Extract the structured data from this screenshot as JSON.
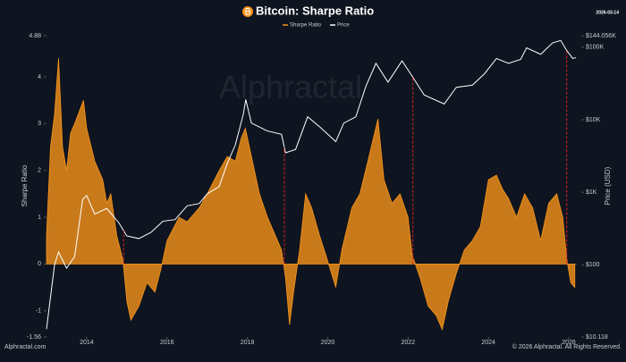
{
  "chart_data": {
    "type": "area-line",
    "title": "Bitcoin: Sharpe Ratio",
    "date": "2026-03-14",
    "y_label": "Sharpe Ratio",
    "y2_label": "Price (USD)",
    "watermark": "Alphractal",
    "footer_left": "Alphractal.com",
    "footer_right": "© 2026 Alphractal. All Rights Reserved.",
    "xlim": [
      2013,
      2026.2
    ],
    "xticks": [
      2014,
      2016,
      2018,
      2020,
      2022,
      2024,
      2026
    ],
    "ylim": [
      -1.56,
      4.88
    ],
    "yticks": [
      -1.56,
      -1,
      0,
      1,
      2,
      3,
      4,
      4.88
    ],
    "y2lim": [
      10.118,
      144056
    ],
    "y2log": true,
    "y2ticks": [
      {
        "value": 10.118,
        "label": "$10.118"
      },
      {
        "value": 100,
        "label": "$100"
      },
      {
        "value": 1000,
        "label": "$1K"
      },
      {
        "value": 10000,
        "label": "$10K"
      },
      {
        "value": 100000,
        "label": "$100K"
      },
      {
        "value": 144056,
        "label": "$144.056K"
      }
    ],
    "cycle_markers": [
      2014.92,
      2018.92,
      2022.12,
      2025.95
    ],
    "marker_color": "#e02020",
    "series": [
      {
        "name": "Sharpe Ratio",
        "color": "#f7931a",
        "kind": "area",
        "x": [
          2013.0,
          2013.1,
          2013.2,
          2013.3,
          2013.4,
          2013.5,
          2013.6,
          2013.7,
          2013.92,
          2014.0,
          2014.2,
          2014.4,
          2014.5,
          2014.6,
          2014.75,
          2014.9,
          2015.0,
          2015.1,
          2015.3,
          2015.5,
          2015.7,
          2015.85,
          2016.0,
          2016.3,
          2016.5,
          2016.8,
          2017.0,
          2017.3,
          2017.5,
          2017.7,
          2017.85,
          2017.95,
          2018.1,
          2018.3,
          2018.5,
          2018.7,
          2018.85,
          2018.95,
          2019.05,
          2019.15,
          2019.3,
          2019.45,
          2019.6,
          2019.8,
          2019.95,
          2020.2,
          2020.35,
          2020.6,
          2020.8,
          2021.0,
          2021.25,
          2021.4,
          2021.6,
          2021.8,
          2022.0,
          2022.1,
          2022.3,
          2022.5,
          2022.7,
          2022.85,
          2023.0,
          2023.2,
          2023.4,
          2023.6,
          2023.8,
          2024.0,
          2024.2,
          2024.35,
          2024.5,
          2024.7,
          2024.9,
          2025.1,
          2025.3,
          2025.5,
          2025.7,
          2025.85,
          2025.95,
          2026.05,
          2026.15
        ],
        "values": [
          0.6,
          2.5,
          3.2,
          4.4,
          2.5,
          2.0,
          2.8,
          3.0,
          3.5,
          2.9,
          2.2,
          1.8,
          1.3,
          1.5,
          0.6,
          0.1,
          -0.8,
          -1.2,
          -0.9,
          -0.4,
          -0.6,
          -0.1,
          0.5,
          1.0,
          0.9,
          1.2,
          1.5,
          2.0,
          2.3,
          2.2,
          2.7,
          2.9,
          2.3,
          1.5,
          1.0,
          0.6,
          0.3,
          -0.3,
          -1.3,
          -0.6,
          0.3,
          1.5,
          1.2,
          0.6,
          0.2,
          -0.5,
          0.3,
          1.2,
          1.5,
          2.2,
          3.1,
          1.8,
          1.3,
          1.5,
          1.0,
          0.2,
          -0.3,
          -0.9,
          -1.1,
          -1.4,
          -0.8,
          -0.2,
          0.3,
          0.5,
          0.8,
          1.8,
          1.9,
          1.6,
          1.4,
          1.0,
          1.5,
          1.2,
          0.5,
          1.3,
          1.5,
          1.0,
          0.1,
          -0.4,
          -0.5
        ]
      },
      {
        "name": "Price",
        "color": "#ffffff",
        "kind": "line",
        "axis": "y2",
        "x": [
          2013.0,
          2013.2,
          2013.3,
          2013.5,
          2013.7,
          2013.9,
          2014.0,
          2014.2,
          2014.5,
          2014.8,
          2015.0,
          2015.3,
          2015.6,
          2015.9,
          2016.2,
          2016.5,
          2016.8,
          2017.0,
          2017.3,
          2017.5,
          2017.7,
          2017.9,
          2017.96,
          2018.1,
          2018.5,
          2018.85,
          2018.95,
          2019.2,
          2019.5,
          2019.8,
          2020.2,
          2020.4,
          2020.7,
          2020.95,
          2021.2,
          2021.5,
          2021.85,
          2022.1,
          2022.4,
          2022.9,
          2023.2,
          2023.6,
          2023.9,
          2024.2,
          2024.5,
          2024.8,
          2024.95,
          2025.3,
          2025.6,
          2025.8,
          2025.95,
          2026.1,
          2026.18
        ],
        "values": [
          13,
          100,
          150,
          90,
          130,
          800,
          900,
          500,
          600,
          380,
          250,
          230,
          280,
          400,
          420,
          650,
          700,
          950,
          1200,
          2500,
          4500,
          12000,
          19000,
          9000,
          7000,
          6300,
          3500,
          3900,
          11000,
          8000,
          5000,
          9000,
          11000,
          29000,
          60000,
          33000,
          65000,
          40000,
          22000,
          16500,
          28000,
          30000,
          43000,
          70000,
          60000,
          68000,
          98000,
          80000,
          115000,
          124000,
          90000,
          70000,
          72000
        ]
      }
    ]
  }
}
